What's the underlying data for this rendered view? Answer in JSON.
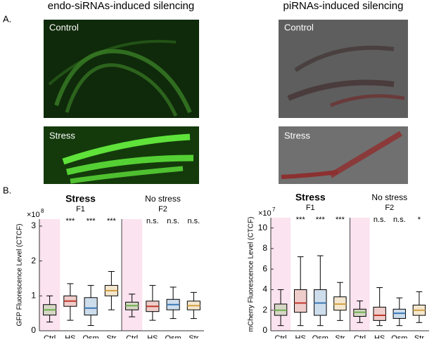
{
  "panel_a": {
    "label": "A.",
    "left_title": "endo-siRNAs-induced silencing",
    "right_title": "piRNAs-induced silencing",
    "image_labels": [
      "Control",
      "Stress",
      "Control",
      "Stress"
    ]
  },
  "panel_b_label": "B.",
  "chart_data": [
    {
      "type": "box",
      "ylabel": "GFP Fluorescence Level (CTCF)",
      "multiplier_base": "×10",
      "multiplier_exponent": "8",
      "groups": [
        {
          "title": "Stress",
          "subtitle": "F1"
        },
        {
          "title": "No stress",
          "subtitle": "F2"
        }
      ],
      "categories": [
        "Ctrl",
        "HS",
        "Osm",
        "Str",
        "Ctrl",
        "HS",
        "Osm",
        "Str"
      ],
      "colors": [
        "#6ab04c",
        "#c0392b",
        "#3a78b5",
        "#d4a040",
        "#6ab04c",
        "#c0392b",
        "#3a78b5",
        "#d4a040"
      ],
      "significance": [
        null,
        "***",
        "***",
        "***",
        null,
        "n.s.",
        "n.s.",
        "n.s."
      ],
      "min": [
        0.25,
        0.3,
        0.15,
        0.6,
        0.4,
        0.3,
        0.35,
        0.35
      ],
      "q1": [
        0.45,
        0.7,
        0.45,
        1.0,
        0.6,
        0.55,
        0.6,
        0.6
      ],
      "median": [
        0.6,
        0.85,
        0.65,
        1.15,
        0.72,
        0.7,
        0.75,
        0.72
      ],
      "q3": [
        0.75,
        1.0,
        0.95,
        1.3,
        0.82,
        0.85,
        0.9,
        0.85
      ],
      "max": [
        1.0,
        1.35,
        1.3,
        1.7,
        1.05,
        1.3,
        1.25,
        1.1
      ],
      "ylim": [
        0,
        3.2
      ],
      "yticks": [
        0,
        1,
        2,
        3
      ]
    },
    {
      "type": "box",
      "ylabel": "mCherry Fluorescence Level (CTCF)",
      "multiplier_base": "×10",
      "multiplier_exponent": "7",
      "groups": [
        {
          "title": "Stress",
          "subtitle": "F1"
        },
        {
          "title": "No stress",
          "subtitle": "F2"
        }
      ],
      "categories": [
        "Ctrl",
        "HS",
        "Osm",
        "Str",
        "Ctrl",
        "HS",
        "Osm",
        "Str"
      ],
      "colors": [
        "#6ab04c",
        "#c0392b",
        "#3a78b5",
        "#d4a040",
        "#6ab04c",
        "#c0392b",
        "#3a78b5",
        "#d4a040"
      ],
      "significance": [
        null,
        "***",
        "***",
        "***",
        null,
        "n.s.",
        "n.s.",
        "*"
      ],
      "min": [
        0.5,
        0.5,
        0.5,
        1.0,
        0.8,
        0.5,
        0.5,
        0.8
      ],
      "q1": [
        1.5,
        1.8,
        1.5,
        2.0,
        1.4,
        1.0,
        1.2,
        1.5
      ],
      "median": [
        2.0,
        2.7,
        2.7,
        2.6,
        1.8,
        1.5,
        1.7,
        2.0
      ],
      "q3": [
        2.6,
        4.0,
        4.0,
        3.3,
        2.1,
        2.3,
        2.1,
        2.5
      ],
      "max": [
        4.0,
        7.2,
        7.3,
        4.7,
        2.9,
        4.2,
        3.2,
        3.8
      ],
      "ylim": [
        0,
        11
      ],
      "yticks": [
        0,
        2,
        4,
        6,
        8,
        10
      ]
    }
  ]
}
